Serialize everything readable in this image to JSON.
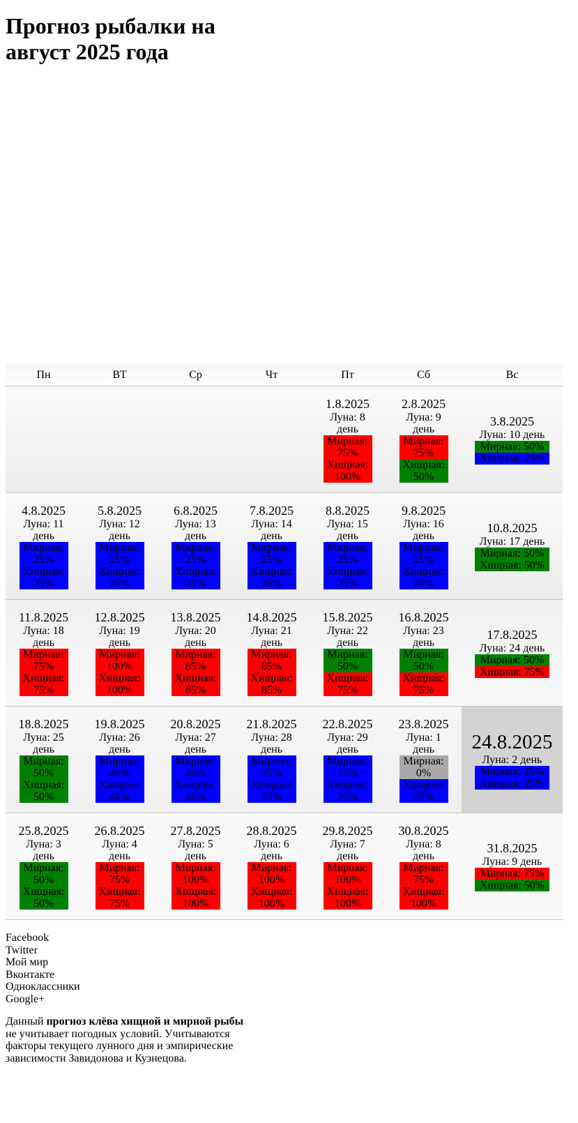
{
  "page": {
    "title_line1": "Прогноз рыбалки на",
    "title_line2": "август 2025 года"
  },
  "colors": {
    "red": "#ff0000",
    "green": "#008000",
    "blue": "#0000ff",
    "gray": "#a9a9a9",
    "today_bg": "#d3d3d3"
  },
  "weekdays": [
    "Пн",
    "ВТ",
    "Ср",
    "Чт",
    "Пт",
    "Сб",
    "Вс"
  ],
  "labels": {
    "moon": "Луна:",
    "day": "день",
    "peaceful": "Мирная:",
    "predatory": "Хищная:"
  },
  "weeks": [
    [
      null,
      null,
      null,
      null,
      {
        "date": "1.8.2025",
        "moon": 8,
        "peaceful": 75,
        "peaceful_color": "red",
        "predatory": 100,
        "predatory_color": "red"
      },
      {
        "date": "2.8.2025",
        "moon": 9,
        "peaceful": 75,
        "peaceful_color": "red",
        "predatory": 50,
        "predatory_color": "green"
      },
      {
        "date": "3.8.2025",
        "moon": 10,
        "peaceful": 50,
        "peaceful_color": "green",
        "predatory": 25,
        "predatory_color": "blue"
      }
    ],
    [
      {
        "date": "4.8.2025",
        "moon": 11,
        "peaceful": 25,
        "peaceful_color": "blue",
        "predatory": 25,
        "predatory_color": "blue"
      },
      {
        "date": "5.8.2025",
        "moon": 12,
        "peaceful": 25,
        "peaceful_color": "blue",
        "predatory": 25,
        "predatory_color": "blue"
      },
      {
        "date": "6.8.2025",
        "moon": 13,
        "peaceful": 25,
        "peaceful_color": "blue",
        "predatory": 25,
        "predatory_color": "blue"
      },
      {
        "date": "7.8.2025",
        "moon": 14,
        "peaceful": 25,
        "peaceful_color": "blue",
        "predatory": 25,
        "predatory_color": "blue"
      },
      {
        "date": "8.8.2025",
        "moon": 15,
        "peaceful": 25,
        "peaceful_color": "blue",
        "predatory": 25,
        "predatory_color": "blue"
      },
      {
        "date": "9.8.2025",
        "moon": 16,
        "peaceful": 25,
        "peaceful_color": "blue",
        "predatory": 25,
        "predatory_color": "blue"
      },
      {
        "date": "10.8.2025",
        "moon": 17,
        "peaceful": 50,
        "peaceful_color": "green",
        "predatory": 50,
        "predatory_color": "green"
      }
    ],
    [
      {
        "date": "11.8.2025",
        "moon": 18,
        "peaceful": 75,
        "peaceful_color": "red",
        "predatory": 75,
        "predatory_color": "red"
      },
      {
        "date": "12.8.2025",
        "moon": 19,
        "peaceful": 100,
        "peaceful_color": "red",
        "predatory": 100,
        "predatory_color": "red"
      },
      {
        "date": "13.8.2025",
        "moon": 20,
        "peaceful": 85,
        "peaceful_color": "red",
        "predatory": 85,
        "predatory_color": "red"
      },
      {
        "date": "14.8.2025",
        "moon": 21,
        "peaceful": 85,
        "peaceful_color": "red",
        "predatory": 85,
        "predatory_color": "red"
      },
      {
        "date": "15.8.2025",
        "moon": 22,
        "peaceful": 50,
        "peaceful_color": "green",
        "predatory": 75,
        "predatory_color": "red"
      },
      {
        "date": "16.8.2025",
        "moon": 23,
        "peaceful": 50,
        "peaceful_color": "green",
        "predatory": 75,
        "predatory_color": "red"
      },
      {
        "date": "17.8.2025",
        "moon": 24,
        "peaceful": 50,
        "peaceful_color": "green",
        "predatory": 75,
        "predatory_color": "red"
      }
    ],
    [
      {
        "date": "18.8.2025",
        "moon": 25,
        "peaceful": 50,
        "peaceful_color": "green",
        "predatory": 50,
        "predatory_color": "green"
      },
      {
        "date": "19.8.2025",
        "moon": 26,
        "peaceful": 40,
        "peaceful_color": "blue",
        "predatory": 40,
        "predatory_color": "blue"
      },
      {
        "date": "20.8.2025",
        "moon": 27,
        "peaceful": 40,
        "peaceful_color": "blue",
        "predatory": 40,
        "predatory_color": "blue"
      },
      {
        "date": "21.8.2025",
        "moon": 28,
        "peaceful": 25,
        "peaceful_color": "blue",
        "predatory": 25,
        "predatory_color": "blue"
      },
      {
        "date": "22.8.2025",
        "moon": 29,
        "peaceful": 25,
        "peaceful_color": "blue",
        "predatory": 25,
        "predatory_color": "blue"
      },
      {
        "date": "23.8.2025",
        "moon": 1,
        "peaceful": 0,
        "peaceful_color": "gray",
        "predatory": 25,
        "predatory_color": "blue"
      },
      {
        "date": "24.8.2025",
        "moon": 2,
        "peaceful": 25,
        "peaceful_color": "blue",
        "predatory": 25,
        "predatory_color": "blue",
        "today": true
      }
    ],
    [
      {
        "date": "25.8.2025",
        "moon": 3,
        "peaceful": 50,
        "peaceful_color": "green",
        "predatory": 50,
        "predatory_color": "green"
      },
      {
        "date": "26.8.2025",
        "moon": 4,
        "peaceful": 75,
        "peaceful_color": "red",
        "predatory": 75,
        "predatory_color": "red"
      },
      {
        "date": "27.8.2025",
        "moon": 5,
        "peaceful": 100,
        "peaceful_color": "red",
        "predatory": 100,
        "predatory_color": "red"
      },
      {
        "date": "28.8.2025",
        "moon": 6,
        "peaceful": 100,
        "peaceful_color": "red",
        "predatory": 100,
        "predatory_color": "red"
      },
      {
        "date": "29.8.2025",
        "moon": 7,
        "peaceful": 100,
        "peaceful_color": "red",
        "predatory": 100,
        "predatory_color": "red"
      },
      {
        "date": "30.8.2025",
        "moon": 8,
        "peaceful": 75,
        "peaceful_color": "red",
        "predatory": 100,
        "predatory_color": "red"
      },
      {
        "date": "31.8.2025",
        "moon": 9,
        "peaceful": 75,
        "peaceful_color": "red",
        "predatory": 50,
        "predatory_color": "green"
      }
    ]
  ],
  "social_links": [
    "Facebook",
    "Twitter",
    "Мой мир",
    "Вконтакте",
    "Одноклассники",
    "Google+"
  ],
  "footer": {
    "prefix": "Данный",
    "bold": "прогноз клёва хищной и мирной рыбы",
    "rest": "не учитывает погодных условий. Учитываются факторы текущего лунного дня и эмпирические зависимости Завидонова и Кузнецова."
  }
}
